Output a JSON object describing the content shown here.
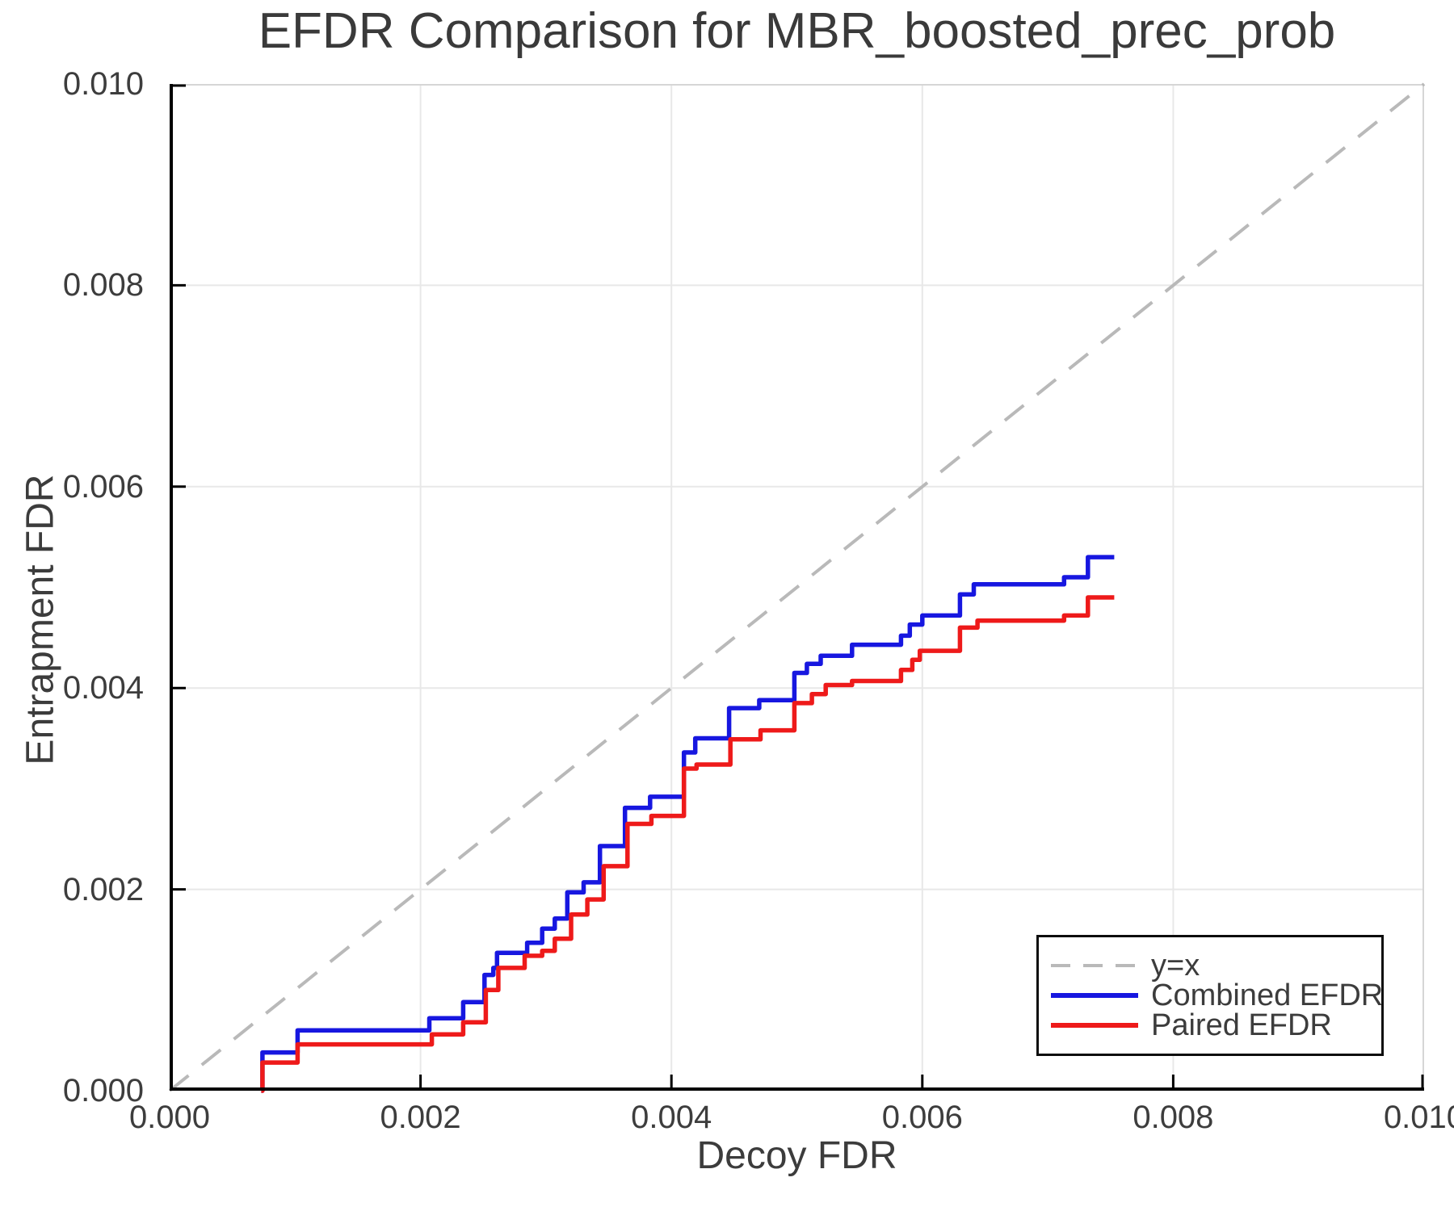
{
  "chart_data": {
    "type": "line",
    "title": "EFDR Comparison for MBR_boosted_prec_prob",
    "xlabel": "Decoy FDR",
    "ylabel": "Entrapment FDR",
    "xlim": [
      0.0,
      0.01
    ],
    "ylim": [
      0.0,
      0.01
    ],
    "grid": true,
    "x_ticks": [
      0.0,
      0.002,
      0.004,
      0.006,
      0.008,
      0.01
    ],
    "x_tick_labels": [
      "0.000",
      "0.002",
      "0.004",
      "0.006",
      "0.008",
      "0.010"
    ],
    "y_ticks": [
      0.0,
      0.002,
      0.004,
      0.006,
      0.008,
      0.01
    ],
    "y_tick_labels": [
      "0.000",
      "0.002",
      "0.004",
      "0.006",
      "0.008",
      "0.010"
    ],
    "legend_position": "bottom-right",
    "series": [
      {
        "name": "y=x",
        "color": "#b9b9b9",
        "style": "dashed",
        "interp": "linear",
        "points": [
          [
            0.0,
            0.0
          ],
          [
            0.01,
            0.01
          ]
        ]
      },
      {
        "name": "Combined EFDR",
        "color": "#1717e0",
        "style": "solid",
        "interp": "step",
        "points": [
          [
            0.00073,
            0.0
          ],
          [
            0.00074,
            0.00038
          ],
          [
            0.00102,
            0.0006
          ],
          [
            0.00207,
            0.00072
          ],
          [
            0.00234,
            0.00088
          ],
          [
            0.00251,
            0.00115
          ],
          [
            0.00258,
            0.00122
          ],
          [
            0.00261,
            0.00137
          ],
          [
            0.00285,
            0.00147
          ],
          [
            0.00297,
            0.00161
          ],
          [
            0.00307,
            0.00171
          ],
          [
            0.00317,
            0.00197
          ],
          [
            0.0033,
            0.00207
          ],
          [
            0.00343,
            0.00243
          ],
          [
            0.00363,
            0.00281
          ],
          [
            0.00383,
            0.00292
          ],
          [
            0.0041,
            0.00336
          ],
          [
            0.00419,
            0.0035
          ],
          [
            0.00446,
            0.0038
          ],
          [
            0.0047,
            0.00388
          ],
          [
            0.00498,
            0.00415
          ],
          [
            0.00508,
            0.00424
          ],
          [
            0.00519,
            0.00432
          ],
          [
            0.00544,
            0.00443
          ],
          [
            0.00583,
            0.00452
          ],
          [
            0.0059,
            0.00463
          ],
          [
            0.006,
            0.00472
          ],
          [
            0.0063,
            0.00493
          ],
          [
            0.00641,
            0.00503
          ],
          [
            0.00713,
            0.0051
          ],
          [
            0.00732,
            0.0053
          ],
          [
            0.00753,
            0.0053
          ]
        ]
      },
      {
        "name": "Paired EFDR",
        "color": "#ee1a1a",
        "style": "solid",
        "interp": "step",
        "points": [
          [
            0.00073,
            0.0
          ],
          [
            0.00074,
            0.00028
          ],
          [
            0.00102,
            0.00046
          ],
          [
            0.00209,
            0.00056
          ],
          [
            0.00234,
            0.00068
          ],
          [
            0.00252,
            0.001
          ],
          [
            0.00262,
            0.00122
          ],
          [
            0.00283,
            0.00134
          ],
          [
            0.00297,
            0.00139
          ],
          [
            0.00307,
            0.00151
          ],
          [
            0.0032,
            0.00175
          ],
          [
            0.00333,
            0.0019
          ],
          [
            0.00346,
            0.00223
          ],
          [
            0.00365,
            0.00265
          ],
          [
            0.00384,
            0.00273
          ],
          [
            0.0041,
            0.0032
          ],
          [
            0.0042,
            0.00324
          ],
          [
            0.00447,
            0.00349
          ],
          [
            0.00471,
            0.00358
          ],
          [
            0.00498,
            0.00385
          ],
          [
            0.00512,
            0.00394
          ],
          [
            0.00523,
            0.00403
          ],
          [
            0.00544,
            0.00407
          ],
          [
            0.00583,
            0.00418
          ],
          [
            0.00592,
            0.00428
          ],
          [
            0.00598,
            0.00437
          ],
          [
            0.0063,
            0.0046
          ],
          [
            0.00644,
            0.00467
          ],
          [
            0.00713,
            0.00472
          ],
          [
            0.00732,
            0.0049
          ],
          [
            0.00753,
            0.0049
          ]
        ]
      }
    ],
    "style_colors": {
      "text": "#3c3c3c",
      "gridline": "#e8e8e8",
      "frame_light": "#d6d6d6",
      "spine": "#000000",
      "background": "#ffffff"
    }
  }
}
